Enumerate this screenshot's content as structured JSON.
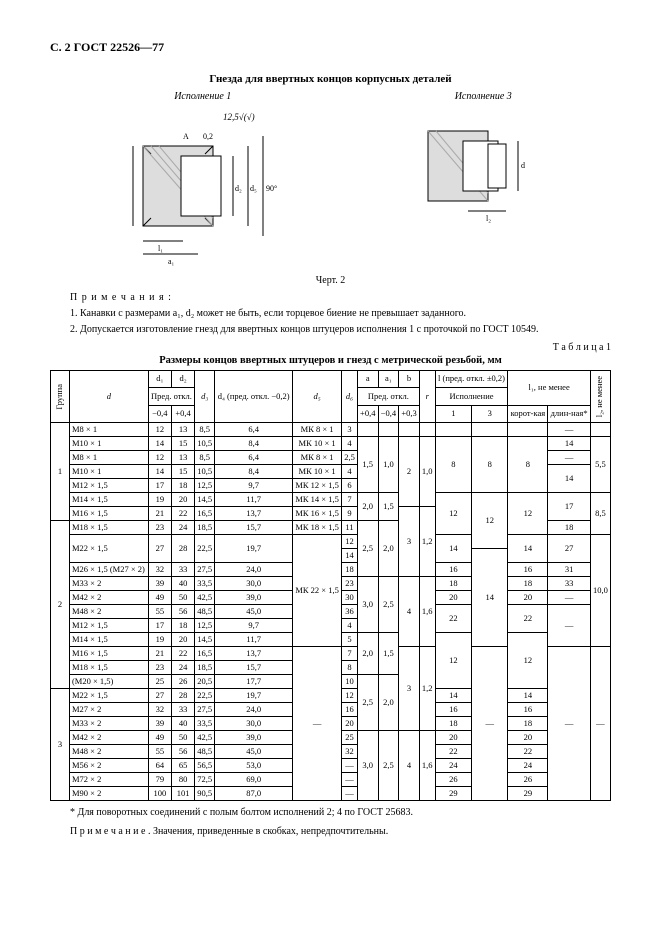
{
  "page_header": "С. 2 ГОСТ 22526—77",
  "title": "Гнезда для ввертных концов корпусных деталей",
  "exec1": "Исполнение 1",
  "exec3": "Исполнение 3",
  "surface_annot": "12,5√(√)",
  "figure_label": "Черт. 2",
  "notes_head": "П р и м е ч а н и я :",
  "note1": "1. Канавки с размерами a₁, d₂ может не быть, если торцевое биение не превышает заданного.",
  "note2": "2. Допускается изготовление гнезд для ввертных концов штуцеров исполнения 1 с проточкой по ГОСТ 10549.",
  "table_label": "Т а б л и ц а 1",
  "table_title": "Размеры концов ввертных штуцеров и гнезд с метрической резьбой, мм",
  "headers": {
    "group": "Группа",
    "d": "d",
    "d1": "d₁",
    "d2": "d₂",
    "d3": "d₃",
    "d4": "d₄ (пред. откл. −0,2)",
    "d5": "d₅",
    "d6": "d₆",
    "a": "a",
    "a1": "a₁",
    "b": "b",
    "r": "r",
    "l": "l (пред. откл. ±0,2)",
    "l1": "l₁, не менее",
    "predotkl": "Пред. откл.",
    "ispol": "Исполнение",
    "m04": "−0,4",
    "p04": "+0,4",
    "p03": "+0,3",
    "exec1c": "1",
    "exec3c": "3",
    "short": "корот-кая",
    "long": "длин-ная*",
    "l2": "l₂, не менее"
  },
  "rows": [
    {
      "g": "1",
      "d": "М8 × 1",
      "d1": "12",
      "d2": "13",
      "d3": "8,5",
      "d4": "6,4",
      "d5": "МК 8 × 1",
      "d6": "3",
      "a": "",
      "a1": "",
      "b": "",
      "r": "",
      "l1c": "",
      "l3c": "",
      "lshort": "",
      "llong": "—",
      "l2": ""
    },
    {
      "g": "",
      "d": "М10 × 1",
      "d1": "14",
      "d2": "15",
      "d3": "10,5",
      "d4": "8,4",
      "d5": "МК 10 × 1",
      "d6": "4",
      "a": "1,5",
      "a1": "1,0",
      "b": "2",
      "r": "1,0",
      "l1c": "8",
      "l3c": "8",
      "lshort": "8",
      "llong": "14",
      "l2": "5,5"
    },
    {
      "g": "",
      "d": "М8 × 1",
      "d1": "12",
      "d2": "13",
      "d3": "8,5",
      "d4": "6,4",
      "d5": "МК 8 × 1",
      "d6": "2,5",
      "a": "",
      "a1": "",
      "b": "",
      "r": "",
      "l1c": "",
      "l3c": "",
      "lshort": "",
      "llong": "—",
      "l2": ""
    },
    {
      "g": "",
      "d": "М10 × 1",
      "d1": "14",
      "d2": "15",
      "d3": "10,5",
      "d4": "8,4",
      "d5": "МК 10 × 1",
      "d6": "4",
      "a": "",
      "a1": "",
      "b": "",
      "r": "",
      "l1c": "",
      "l3c": "",
      "lshort": "",
      "llong": "14",
      "l2": ""
    },
    {
      "g": "",
      "d": "М12 × 1,5",
      "d1": "17",
      "d2": "18",
      "d3": "12,5",
      "d4": "9,7",
      "d5": "МК 12 × 1,5",
      "d6": "6",
      "a": "",
      "a1": "",
      "b": "",
      "r": "",
      "l1c": "",
      "l3c": "",
      "lshort": "",
      "llong": "",
      "l2": ""
    },
    {
      "g": "",
      "d": "М14 × 1,5",
      "d1": "19",
      "d2": "20",
      "d3": "14,5",
      "d4": "11,7",
      "d5": "МК 14 × 1,5",
      "d6": "7",
      "a": "2,0",
      "a1": "1,5",
      "b": "",
      "r": "",
      "l1c": "12",
      "l3c": "12",
      "lshort": "12",
      "llong": "17",
      "l2": "8,5"
    },
    {
      "g": "",
      "d": "М16 × 1,5",
      "d1": "21",
      "d2": "22",
      "d3": "16,5",
      "d4": "13,7",
      "d5": "МК 16 × 1,5",
      "d6": "9",
      "a": "",
      "a1": "",
      "b": "3",
      "r": "1,2",
      "l1c": "",
      "l3c": "",
      "lshort": "",
      "llong": "",
      "l2": ""
    },
    {
      "g": "2",
      "d": "М18 × 1,5",
      "d1": "23",
      "d2": "24",
      "d3": "18,5",
      "d4": "15,7",
      "d5": "МК 18 × 1,5",
      "d6": "11",
      "a": "2,5",
      "a1": "2,0",
      "b": "",
      "r": "",
      "l1c": "",
      "l3c": "",
      "lshort": "",
      "llong": "18",
      "l2": ""
    },
    {
      "g": "",
      "d": "М22 × 1,5",
      "d1": "27",
      "d2": "28",
      "d3": "22,5",
      "d4": "19,7",
      "d5": "МК 22 × 1,5",
      "d6_a": "12",
      "d6_b": "14",
      "a": "",
      "a1": "",
      "b": "",
      "r": "",
      "l1c_a": "14",
      "l3c_a": "",
      "lshort_a": "14",
      "llong_a": "27",
      "l1c_b": "",
      "l3c_b": "14",
      "lshort_b": "",
      "llong_b": "",
      "l2": "10,0"
    },
    {
      "g": "",
      "d": "М26 × 1,5 (М27 × 2)",
      "d1": "32",
      "d2": "33",
      "d3": "27,5",
      "d4": "24,0",
      "d5": "",
      "d6": "18",
      "a": "",
      "a1": "",
      "b": "",
      "r": "",
      "l1c": "16",
      "l3c": "",
      "lshort": "16",
      "llong": "31",
      "l2": ""
    },
    {
      "g": "",
      "d": "М33 × 2",
      "d1": "39",
      "d2": "40",
      "d3": "33,5",
      "d4": "30,0",
      "d5": "",
      "d6": "23",
      "a": "3,0",
      "a1": "2,5",
      "b": "4",
      "r": "1,6",
      "l1c": "18",
      "l3c": "",
      "lshort": "18",
      "llong": "33",
      "l2": ""
    },
    {
      "g": "",
      "d": "М42 × 2",
      "d1": "49",
      "d2": "50",
      "d3": "42,5",
      "d4": "39,0",
      "d5": "",
      "d6": "30",
      "a": "",
      "a1": "",
      "b": "",
      "r": "",
      "l1c": "20",
      "l3c": "",
      "lshort": "20",
      "llong": "—",
      "l2": ""
    },
    {
      "g": "",
      "d": "",
      "d1": "",
      "d2": "",
      "d3": "",
      "d4": "",
      "d5": "",
      "d6": "",
      "a": "",
      "a1": "",
      "b": "",
      "r": "",
      "l1c": "",
      "l3c": "",
      "lshort": "",
      "llong": "—",
      "l2": ""
    },
    {
      "g": "",
      "d": "М48 × 2",
      "d1": "55",
      "d2": "56",
      "d3": "48,5",
      "d4": "45,0",
      "d5": "",
      "d6": "36",
      "a": "",
      "a1": "",
      "b": "",
      "r": "",
      "l1c": "22",
      "l3c": "",
      "lshort": "22",
      "llong": "",
      "l2": ""
    },
    {
      "g": "",
      "d": "М12 × 1,5",
      "d1": "17",
      "d2": "18",
      "d3": "12,5",
      "d4": "9,7",
      "d5": "",
      "d6": "4",
      "a": "",
      "a1": "",
      "b": "",
      "r": "",
      "l1c": "",
      "l3c": "",
      "lshort": "",
      "llong": "",
      "l2": ""
    },
    {
      "g": "",
      "d": "М14 × 1,5",
      "d1": "19",
      "d2": "20",
      "d3": "14,5",
      "d4": "11,7",
      "d5": "",
      "d6": "5",
      "a": "2,0",
      "a1": "1,5",
      "b": "",
      "r": "",
      "l1c": "12",
      "l3c": "",
      "lshort": "12",
      "llong": "",
      "l2": ""
    },
    {
      "g": "",
      "d": "М16 × 1,5",
      "d1": "21",
      "d2": "22",
      "d3": "16,5",
      "d4": "13,7",
      "d5": "—",
      "d6": "7",
      "a": "",
      "a1": "",
      "b": "3",
      "r": "1,2",
      "l1c": "",
      "l3c": "—",
      "lshort": "",
      "llong": "—",
      "l2": "—"
    },
    {
      "g": "",
      "d": "М18 × 1,5",
      "d1": "23",
      "d2": "24",
      "d3": "18,5",
      "d4": "15,7",
      "d5": "",
      "d6": "8",
      "a": "",
      "a1": "",
      "b": "",
      "r": "",
      "l1c": "",
      "l3c": "",
      "lshort": "",
      "llong": "",
      "l2": ""
    },
    {
      "g": "",
      "d": "(М20 × 1,5)",
      "d1": "25",
      "d2": "26",
      "d3": "20,5",
      "d4": "17,7",
      "d5": "",
      "d6": "10",
      "a": "2,5",
      "a1": "2,0",
      "b": "",
      "r": "",
      "l1c": "",
      "l3c": "",
      "lshort": "",
      "llong": "",
      "l2": ""
    },
    {
      "g": "3",
      "d": "М22 × 1,5",
      "d1": "27",
      "d2": "28",
      "d3": "22,5",
      "d4": "19,7",
      "d5": "",
      "d6": "12",
      "a": "",
      "a1": "",
      "b": "",
      "r": "",
      "l1c": "14",
      "l3c": "",
      "lshort": "14",
      "llong": "",
      "l2": ""
    },
    {
      "g": "",
      "d": "М27 × 2",
      "d1": "32",
      "d2": "33",
      "d3": "27,5",
      "d4": "24,0",
      "d5": "",
      "d6": "16",
      "a": "",
      "a1": "",
      "b": "",
      "r": "",
      "l1c": "16",
      "l3c": "",
      "lshort": "16",
      "llong": "",
      "l2": ""
    },
    {
      "g": "",
      "d": "М33 × 2",
      "d1": "39",
      "d2": "40",
      "d3": "33,5",
      "d4": "30,0",
      "d5": "",
      "d6": "20",
      "a": "",
      "a1": "",
      "b": "",
      "r": "",
      "l1c": "18",
      "l3c": "",
      "lshort": "18",
      "llong": "",
      "l2": ""
    },
    {
      "g": "",
      "d": "М42 × 2",
      "d1": "49",
      "d2": "50",
      "d3": "42,5",
      "d4": "39,0",
      "d5": "",
      "d6": "25",
      "a": "3,0",
      "a1": "2,5",
      "b": "4",
      "r": "1,6",
      "l1c": "20",
      "l3c": "",
      "lshort": "20",
      "llong": "",
      "l2": ""
    },
    {
      "g": "",
      "d": "М48 × 2",
      "d1": "55",
      "d2": "56",
      "d3": "48,5",
      "d4": "45,0",
      "d5": "",
      "d6": "32",
      "a": "",
      "a1": "",
      "b": "",
      "r": "",
      "l1c": "22",
      "l3c": "",
      "lshort": "22",
      "llong": "",
      "l2": ""
    },
    {
      "g": "",
      "d": "М56 × 2",
      "d1": "64",
      "d2": "65",
      "d3": "56,5",
      "d4": "53,0",
      "d5": "",
      "d6": "—",
      "a": "",
      "a1": "",
      "b": "",
      "r": "",
      "l1c": "24",
      "l3c": "",
      "lshort": "24",
      "llong": "",
      "l2": ""
    },
    {
      "g": "",
      "d": "М72 × 2",
      "d1": "79",
      "d2": "80",
      "d3": "72,5",
      "d4": "69,0",
      "d5": "",
      "d6": "—",
      "a": "",
      "a1": "",
      "b": "",
      "r": "",
      "l1c": "26",
      "l3c": "",
      "lshort": "26",
      "llong": "",
      "l2": ""
    },
    {
      "g": "",
      "d": "М90 × 2",
      "d1": "100",
      "d2": "101",
      "d3": "90,5",
      "d4": "87,0",
      "d5": "",
      "d6": "—",
      "a": "",
      "a1": "",
      "b": "",
      "r": "",
      "l1c": "29",
      "l3c": "",
      "lshort": "29",
      "llong": "",
      "l2": ""
    }
  ],
  "footnote1": "* Для поворотных соединений с полым болтом исполнений 2; 4 по ГОСТ 25683.",
  "footnote2": "П р и м е ч а н и е . Значения, приведенные в скобках, непредпочтительны."
}
